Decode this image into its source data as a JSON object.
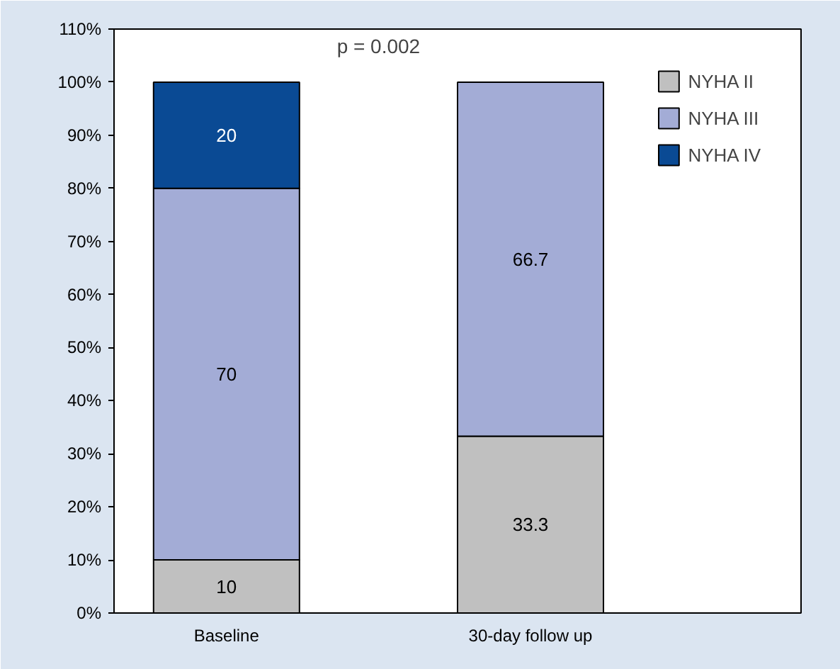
{
  "chart_data": {
    "type": "bar",
    "stacked": true,
    "categories": [
      "Baseline",
      "30-day follow up"
    ],
    "series": [
      {
        "name": "NYHA II",
        "color": "#c0c0c0",
        "values": [
          10,
          33.3
        ]
      },
      {
        "name": "NYHA III",
        "color": "#a3acd6",
        "values": [
          70,
          66.7
        ]
      },
      {
        "name": "NYHA IV",
        "color": "#0a4a94",
        "values": [
          20,
          null
        ]
      }
    ],
    "ylim": [
      0,
      110
    ],
    "yticks": [
      {
        "value": 0,
        "label": "0%"
      },
      {
        "value": 10,
        "label": "10%"
      },
      {
        "value": 20,
        "label": "20%"
      },
      {
        "value": 30,
        "label": "30%"
      },
      {
        "value": 40,
        "label": "40%"
      },
      {
        "value": 50,
        "label": "50%"
      },
      {
        "value": 60,
        "label": "60%"
      },
      {
        "value": 70,
        "label": "70%"
      },
      {
        "value": 80,
        "label": "80%"
      },
      {
        "value": 90,
        "label": "90%"
      },
      {
        "value": 100,
        "label": "100%"
      },
      {
        "value": 110,
        "label": "110%"
      }
    ],
    "annotations": [
      "p = 0.002"
    ],
    "data_labels": true,
    "legend": "top right",
    "grid": false
  }
}
